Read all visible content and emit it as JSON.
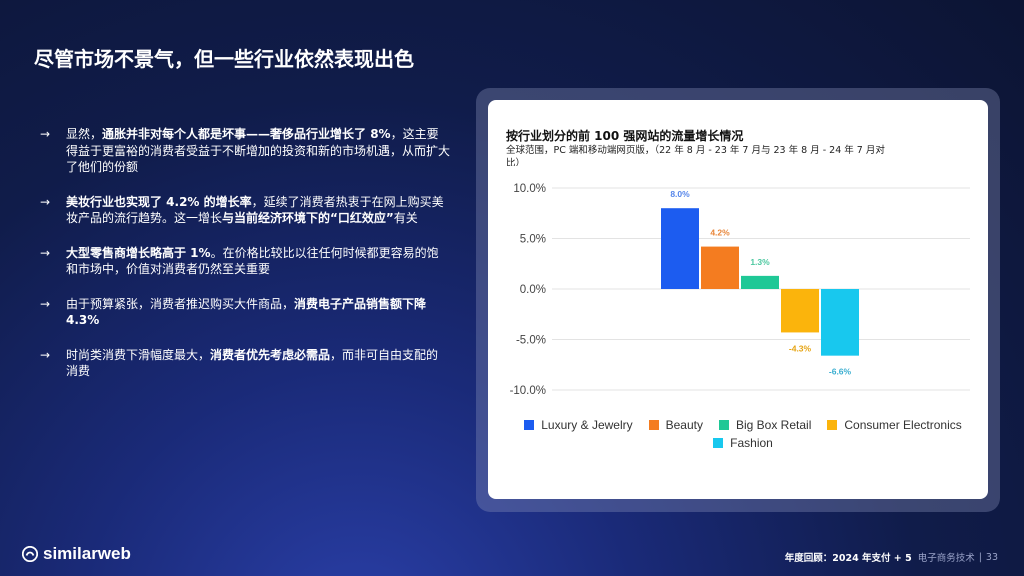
{
  "slide": {
    "title": "尽管市场不景气，但一些行业依然表现出色",
    "bullets": [
      {
        "arrow": "→",
        "parts": [
          {
            "t": "显然，",
            "b": false
          },
          {
            "t": "通胀并非对每个人都是坏事——奢侈品行业增长了 8%",
            "b": true
          },
          {
            "t": "，这主要得益于更富裕的消费者受益于不断增加的投资和新的市场机遇，从而扩大了他们的份额",
            "b": false
          }
        ]
      },
      {
        "arrow": "→",
        "parts": [
          {
            "t": "美妆行业也实现了 4.2% 的增长率",
            "b": true
          },
          {
            "t": "，延续了消费者热衷于在网上购买美妆产品的流行趋势。这一增长",
            "b": false
          },
          {
            "t": "与当前经济环境下的“口红效应”",
            "b": true
          },
          {
            "t": "有关",
            "b": false
          }
        ]
      },
      {
        "arrow": "→",
        "parts": [
          {
            "t": "大型零售商增长略高于 1%",
            "b": true
          },
          {
            "t": "。在价格比较比以往任何时候都更容易的饱和市场中，价值对消费者仍然至关重要",
            "b": false
          }
        ]
      },
      {
        "arrow": "→",
        "parts": [
          {
            "t": "由于预算紧张，消费者推迟购买大件商品，",
            "b": false
          },
          {
            "t": "消费电子产品销售额下降 4.3%",
            "b": true
          }
        ]
      },
      {
        "arrow": "→",
        "parts": [
          {
            "t": "时尚类消费下滑幅度最大，",
            "b": false
          },
          {
            "t": "消费者优先考虑必需品",
            "b": true
          },
          {
            "t": "，而非可自由支配的消费",
            "b": false
          }
        ]
      }
    ]
  },
  "chart_data": {
    "type": "bar",
    "title": "按行业划分的前 100 强网站的流量增长情况",
    "subtitle": "全球范围，PC 端和移动端网页版，（22 年 8 月 - 23 年 7 月与 23 年 8 月 - 24 年 7 月对比）",
    "categories": [
      "Luxury & Jewelry",
      "Beauty",
      "Big Box Retail",
      "Consumer Electronics",
      "Fashion"
    ],
    "values": [
      8.0,
      4.2,
      1.3,
      -4.3,
      -6.6
    ],
    "data_labels": [
      "8.0%",
      "4.2%",
      "1.3%",
      "-4.3%",
      "-6.6%"
    ],
    "colors": [
      "#1c5cf0",
      "#f47c20",
      "#1fc896",
      "#fbb40c",
      "#18c8ee"
    ],
    "label_colors": [
      "#5585ea",
      "#e8863a",
      "#4cc8a0",
      "#e6a412",
      "#3aaed0"
    ],
    "ylim": [
      -10,
      10
    ],
    "yticks": [
      10,
      5,
      0,
      -5,
      -10
    ],
    "ytick_labels": [
      "10.0%",
      "5.0%",
      "0.0%",
      "-5.0%",
      "-10.0%"
    ],
    "grid": true,
    "legend": "bottom"
  },
  "footer": {
    "brand": "similarweb",
    "doc_title": "年度回顾：2024 年支付 + 5",
    "section": "电子商务技术",
    "page": "33"
  }
}
